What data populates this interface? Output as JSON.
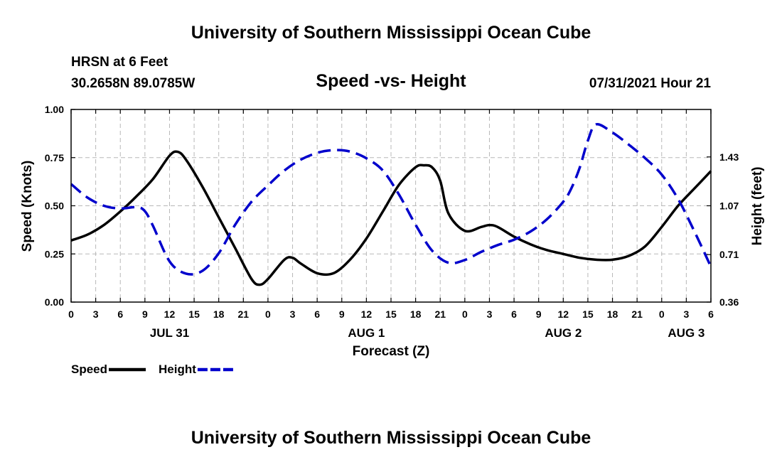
{
  "header": {
    "title_top": "University of Southern Mississippi Ocean Cube",
    "title_bottom": "University of Southern Mississippi Ocean Cube",
    "station": "HRSN at 6 Feet",
    "coords": "30.2658N  89.0785W",
    "datetime": "07/31/2021 Hour 21"
  },
  "chart_data": {
    "type": "line",
    "title": "Speed -vs- Height",
    "xlabel": "Forecast (Z)",
    "ylabel": "Speed (Knots)",
    "y2label": "Height (feet)",
    "xlim": [
      0,
      78
    ],
    "ylim": [
      0,
      1
    ],
    "y2lim": [
      0.36,
      1.78
    ],
    "x_ticks": [
      0,
      3,
      6,
      9,
      12,
      15,
      18,
      21,
      24,
      27,
      30,
      33,
      36,
      39,
      42,
      45,
      48,
      51,
      54,
      57,
      60,
      63,
      66,
      69,
      72,
      75,
      78
    ],
    "x_tick_labels": [
      "0",
      "3",
      "6",
      "9",
      "12",
      "15",
      "18",
      "21",
      "0",
      "3",
      "6",
      "9",
      "12",
      "15",
      "18",
      "21",
      "0",
      "3",
      "6",
      "9",
      "12",
      "15",
      "18",
      "21",
      "0",
      "3",
      "6"
    ],
    "date_labels": [
      {
        "x": 12,
        "label": "JUL 31"
      },
      {
        "x": 36,
        "label": "AUG 1"
      },
      {
        "x": 60,
        "label": "AUG 2"
      },
      {
        "x": 75,
        "label": "AUG 3"
      }
    ],
    "y_ticks": [
      0,
      0.25,
      0.5,
      0.75,
      1.0
    ],
    "y_tick_labels": [
      "0.00",
      "0.25",
      "0.50",
      "0.75",
      "1.00"
    ],
    "y2_ticks": [
      0.36,
      0.71,
      1.07,
      1.43
    ],
    "y2_tick_labels": [
      "0.36",
      "0.71",
      "1.07",
      "1.43"
    ],
    "grid": true,
    "series": [
      {
        "name": "Speed",
        "axis": "left",
        "color": "#000000",
        "style": "solid",
        "x": [
          0,
          2,
          4,
          6,
          8,
          10,
          12,
          13,
          14,
          16,
          18,
          20,
          22,
          23,
          24,
          26,
          27,
          28,
          30,
          32,
          34,
          36,
          38,
          40,
          42,
          43,
          44,
          45,
          46,
          48,
          50,
          51,
          52,
          54,
          56,
          58,
          60,
          62,
          64,
          66,
          68,
          70,
          72,
          74,
          76,
          78
        ],
        "values": [
          0.32,
          0.35,
          0.4,
          0.47,
          0.55,
          0.64,
          0.76,
          0.78,
          0.74,
          0.6,
          0.44,
          0.28,
          0.12,
          0.09,
          0.12,
          0.22,
          0.23,
          0.2,
          0.15,
          0.15,
          0.22,
          0.33,
          0.47,
          0.61,
          0.7,
          0.71,
          0.7,
          0.63,
          0.46,
          0.37,
          0.39,
          0.4,
          0.39,
          0.34,
          0.3,
          0.27,
          0.25,
          0.23,
          0.22,
          0.22,
          0.24,
          0.29,
          0.39,
          0.5,
          0.59,
          0.68
        ]
      },
      {
        "name": "Height",
        "axis": "right",
        "color": "#0000cc",
        "style": "dashed",
        "x": [
          0,
          2,
          4,
          6,
          8,
          9,
          10,
          12,
          14,
          16,
          18,
          20,
          22,
          24,
          26,
          28,
          30,
          32,
          34,
          36,
          38,
          40,
          42,
          44,
          46,
          48,
          50,
          52,
          54,
          56,
          58,
          60,
          61,
          62,
          63,
          64,
          66,
          68,
          70,
          72,
          74,
          76,
          78
        ],
        "values": [
          1.23,
          1.13,
          1.07,
          1.05,
          1.06,
          1.03,
          0.92,
          0.66,
          0.57,
          0.59,
          0.72,
          0.93,
          1.1,
          1.22,
          1.33,
          1.41,
          1.46,
          1.48,
          1.47,
          1.42,
          1.33,
          1.15,
          0.93,
          0.74,
          0.65,
          0.67,
          0.73,
          0.78,
          0.82,
          0.88,
          0.97,
          1.1,
          1.2,
          1.35,
          1.55,
          1.67,
          1.61,
          1.52,
          1.42,
          1.3,
          1.12,
          0.88,
          0.62
        ]
      }
    ],
    "legend": [
      "Speed",
      "Height"
    ],
    "legend_position": "bottom-left"
  }
}
